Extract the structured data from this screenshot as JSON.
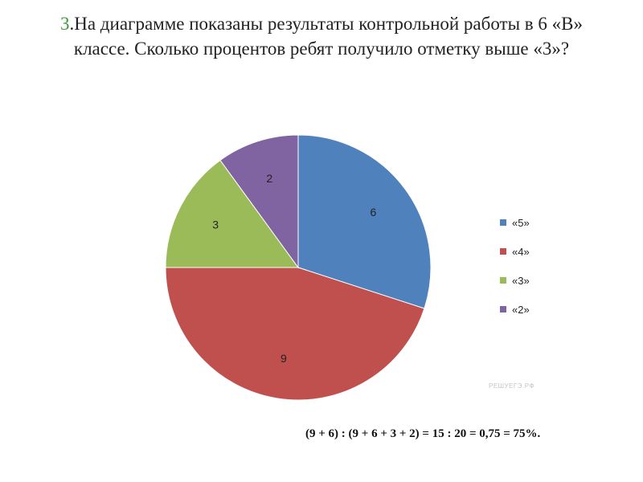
{
  "question": {
    "number": "3",
    "text": ".На диаграмме показаны результаты контрольной работы в 6 «В» классе. Сколько процентов ребят получило отметку выше «3»?"
  },
  "chart_data": {
    "type": "pie",
    "categories": [
      "«5»",
      "«4»",
      "«3»",
      "«2»"
    ],
    "values": [
      6,
      9,
      3,
      2
    ],
    "colors": [
      "#4f81bd",
      "#c0504d",
      "#9bbb59",
      "#8064a2"
    ],
    "legend_position": "right",
    "start_angle": "top, clockwise"
  },
  "watermark": "РЕШУЕГЭ.РФ",
  "answer": "(9 + 6) : (9 + 6 + 3 + 2) = 15 : 20 = 0,75 = 75%."
}
